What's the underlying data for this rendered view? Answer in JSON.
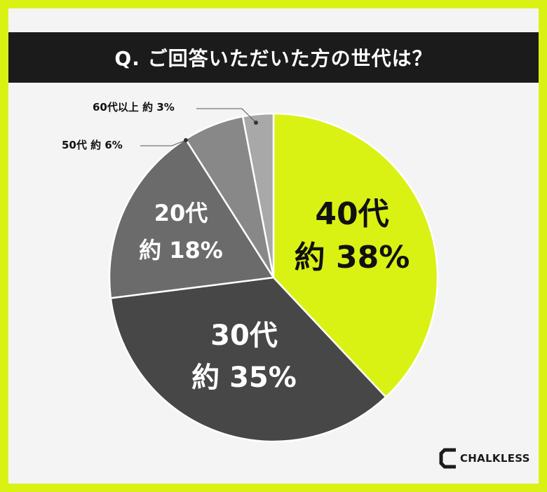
{
  "title": "Q. ご回答いただいた方の世代は？",
  "brand": {
    "name": "CHALKLESS",
    "icon": "chalkless-logo-icon"
  },
  "colors": {
    "border": "#d9f214",
    "title_bg": "#1b1b1b",
    "background": "#f4f4f4"
  },
  "chart_data": {
    "type": "pie",
    "title": "Q. ご回答いただいた方の世代は？",
    "slices": [
      {
        "name": "40代",
        "value_label": "約 38%",
        "value": 38,
        "color": "#d9f214",
        "text_color": "#111111"
      },
      {
        "name": "30代",
        "value_label": "約 35%",
        "value": 35,
        "color": "#474747",
        "text_color": "#ffffff"
      },
      {
        "name": "20代",
        "value_label": "約 18%",
        "value": 18,
        "color": "#6b6b6b",
        "text_color": "#ffffff"
      },
      {
        "name": "50代",
        "value_label": "約 6%",
        "value": 6,
        "color": "#888888",
        "text_color": "#111111"
      },
      {
        "name": "60代以上",
        "value_label": "約 3%",
        "value": 3,
        "color": "#a8a8a8",
        "text_color": "#111111"
      }
    ]
  }
}
